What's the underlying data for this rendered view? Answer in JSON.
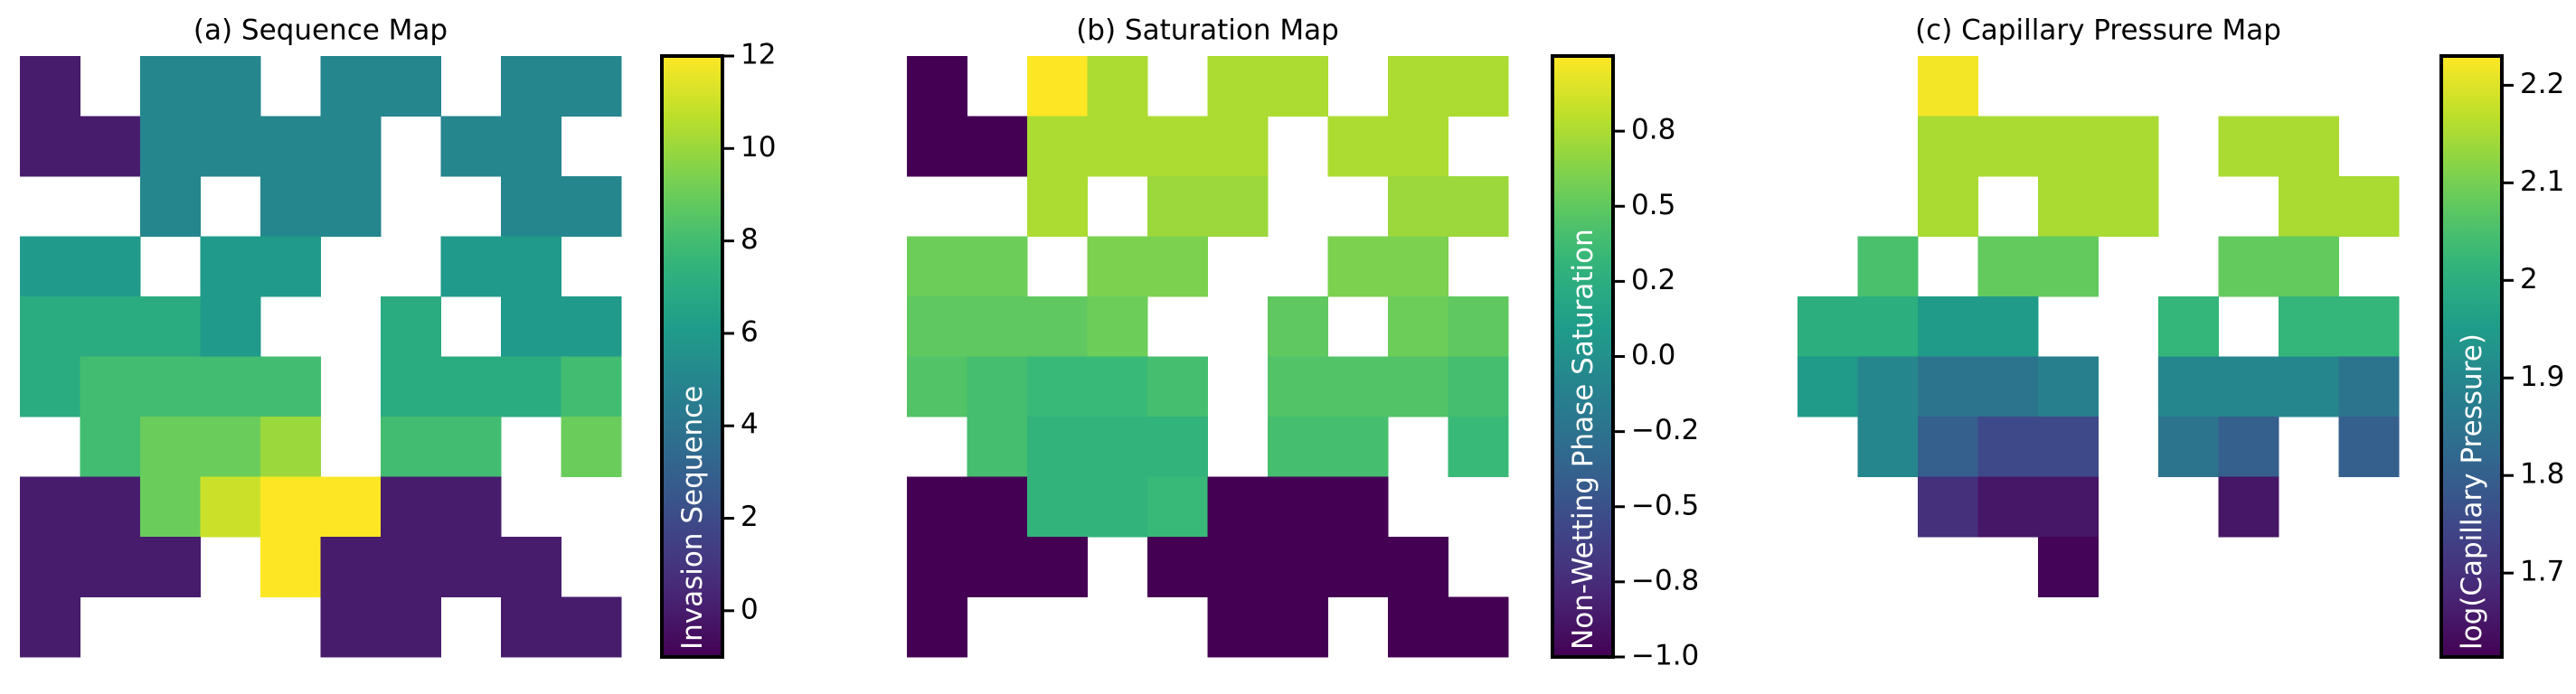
{
  "chart_data": [
    {
      "type": "heatmap",
      "title": "(a) Sequence Map",
      "colorbar_label": "Invasion Sequence",
      "colormap": "viridis",
      "clim": [
        -1,
        12
      ],
      "cticks": [
        0,
        2,
        4,
        6,
        8,
        10,
        12
      ],
      "values": [
        [
          0,
          null,
          5,
          5,
          null,
          5,
          5,
          null,
          5,
          5
        ],
        [
          0,
          0,
          5,
          5,
          5,
          5,
          null,
          5,
          5,
          null
        ],
        [
          null,
          null,
          5,
          null,
          5,
          5,
          null,
          null,
          5,
          5
        ],
        [
          6,
          6,
          null,
          6,
          6,
          null,
          null,
          6,
          6,
          null
        ],
        [
          7,
          7,
          7,
          6,
          null,
          null,
          7,
          null,
          6,
          6
        ],
        [
          7,
          8,
          8,
          8,
          8,
          null,
          7,
          7,
          7,
          8
        ],
        [
          null,
          8,
          9,
          9,
          10,
          null,
          8,
          8,
          null,
          9
        ],
        [
          0,
          0,
          9,
          11,
          12,
          12,
          0,
          0,
          null,
          null
        ],
        [
          0,
          0,
          0,
          null,
          12,
          0,
          0,
          0,
          0,
          null
        ],
        [
          0,
          null,
          null,
          null,
          null,
          0,
          0,
          null,
          0,
          0
        ]
      ]
    },
    {
      "type": "heatmap",
      "title": "(b) Saturation Map",
      "colorbar_label": "Non-Wetting Phase Saturation",
      "colormap": "viridis",
      "clim": [
        -1,
        1
      ],
      "cticks": [
        {
          "value": -1,
          "label": "−1.0"
        },
        {
          "value": -0.75,
          "label": "−0.8"
        },
        {
          "value": -0.5,
          "label": "−0.5"
        },
        {
          "value": -0.25,
          "label": "−0.2"
        },
        {
          "value": 0,
          "label": "0.0"
        },
        {
          "value": 0.25,
          "label": "0.2"
        },
        {
          "value": 0.5,
          "label": "0.5"
        },
        {
          "value": 0.75,
          "label": "0.8"
        }
      ],
      "values": [
        [
          -1,
          null,
          1,
          0.75,
          null,
          0.75,
          0.75,
          null,
          0.75,
          0.75
        ],
        [
          -1,
          -1,
          0.75,
          0.75,
          0.75,
          0.75,
          null,
          0.75,
          0.75,
          null
        ],
        [
          null,
          null,
          0.75,
          null,
          0.7,
          0.7,
          null,
          null,
          0.7,
          0.7
        ],
        [
          0.55,
          0.55,
          null,
          0.6,
          0.6,
          null,
          null,
          0.6,
          0.6,
          null
        ],
        [
          0.5,
          0.5,
          0.5,
          0.55,
          null,
          null,
          0.5,
          null,
          0.55,
          0.5
        ],
        [
          0.45,
          0.4,
          0.35,
          0.35,
          0.4,
          null,
          0.45,
          0.45,
          0.45,
          0.4
        ],
        [
          null,
          0.4,
          0.3,
          0.3,
          0.3,
          null,
          0.4,
          0.4,
          null,
          0.35
        ],
        [
          -1,
          -1,
          0.3,
          0.3,
          0.35,
          -1,
          -1,
          -1,
          null,
          null
        ],
        [
          -1,
          -1,
          -1,
          null,
          -1,
          -1,
          -1,
          -1,
          -1,
          null
        ],
        [
          -1,
          null,
          null,
          null,
          null,
          -1,
          -1,
          null,
          -1,
          -1
        ]
      ]
    },
    {
      "type": "heatmap",
      "title": "(c) Capillary Pressure Map",
      "colorbar_label": "log(Capillary Pressure)",
      "colormap": "viridis",
      "clim": [
        1.614,
        2.23
      ],
      "cticks": [
        1.7,
        1.8,
        1.9,
        2.0,
        2.1,
        2.2
      ],
      "values": [
        [
          null,
          null,
          2.22,
          null,
          null,
          null,
          null,
          null,
          null,
          null
        ],
        [
          null,
          null,
          2.15,
          2.15,
          2.15,
          2.15,
          null,
          2.15,
          2.15,
          null
        ],
        [
          null,
          null,
          2.15,
          null,
          2.15,
          2.15,
          null,
          null,
          2.15,
          2.15
        ],
        [
          null,
          2.05,
          null,
          2.08,
          2.08,
          null,
          null,
          2.08,
          2.08,
          null
        ],
        [
          2.0,
          2.0,
          1.95,
          1.95,
          null,
          null,
          2.02,
          null,
          2.02,
          2.02
        ],
        [
          1.95,
          1.9,
          1.85,
          1.85,
          1.88,
          null,
          1.9,
          1.9,
          1.9,
          1.85
        ],
        [
          null,
          1.9,
          1.8,
          1.75,
          1.75,
          null,
          1.85,
          1.8,
          null,
          1.8
        ],
        [
          null,
          null,
          1.7,
          1.65,
          1.65,
          null,
          null,
          1.65,
          null,
          null
        ],
        [
          null,
          null,
          null,
          null,
          1.62,
          null,
          null,
          null,
          null,
          null
        ],
        [
          null,
          null,
          null,
          null,
          null,
          null,
          null,
          null,
          null,
          null
        ]
      ]
    }
  ]
}
